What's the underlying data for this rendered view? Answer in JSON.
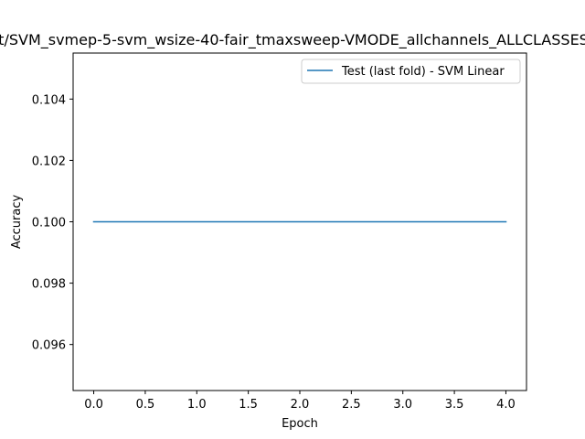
{
  "chart_data": {
    "type": "line",
    "title": "t/SVM_svmep-5-svm_wsize-40-fair_tmaxsweep-VMODE_allchannels_ALLCLASSES",
    "xlabel": "Epoch",
    "ylabel": "Accuracy",
    "xlim": [
      -0.2,
      4.2
    ],
    "ylim": [
      0.0945,
      0.1055
    ],
    "xticks": [
      0.0,
      0.5,
      1.0,
      1.5,
      2.0,
      2.5,
      3.0,
      3.5,
      4.0
    ],
    "xtick_labels": [
      "0.0",
      "0.5",
      "1.0",
      "1.5",
      "2.0",
      "2.5",
      "3.0",
      "3.5",
      "4.0"
    ],
    "yticks": [
      0.096,
      0.098,
      0.1,
      0.102,
      0.104
    ],
    "ytick_labels": [
      "0.096",
      "0.098",
      "0.100",
      "0.102",
      "0.104"
    ],
    "grid": false,
    "legend_position": "top-right",
    "series": [
      {
        "name": "Test (last fold) - SVM Linear",
        "color": "#1f77b4",
        "x": [
          0,
          1,
          2,
          3,
          4
        ],
        "y": [
          0.1,
          0.1,
          0.1,
          0.1,
          0.1
        ]
      }
    ]
  }
}
